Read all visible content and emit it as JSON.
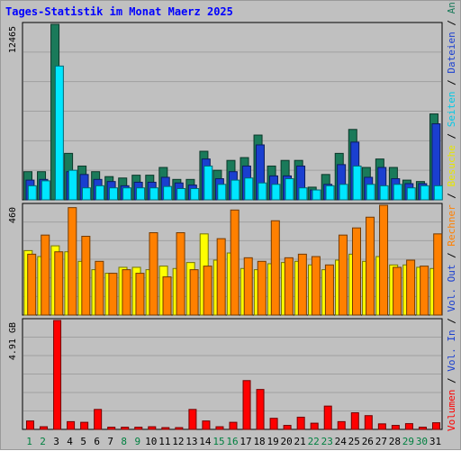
{
  "chart_data": {
    "type": "bar",
    "title": "Tages-Statistik im Monat Maerz 2025",
    "categories": [
      "1",
      "2",
      "3",
      "4",
      "5",
      "6",
      "7",
      "8",
      "9",
      "10",
      "11",
      "12",
      "13",
      "14",
      "15",
      "16",
      "17",
      "18",
      "19",
      "20",
      "21",
      "22",
      "23",
      "24",
      "25",
      "26",
      "27",
      "28",
      "29",
      "30",
      "31"
    ],
    "weekend_days": [
      "1",
      "2",
      "8",
      "9",
      "15",
      "16",
      "22",
      "23",
      "29",
      "30"
    ],
    "panels": [
      {
        "id": "requests",
        "ylim": [
          0,
          12465
        ],
        "max_label": "12465",
        "series": [
          {
            "name": "Anfragen",
            "color": "#1a7a5a",
            "values": [
              2000,
              2000,
              12465,
              3300,
              2400,
              2000,
              1650,
              1550,
              1750,
              1750,
              2300,
              1450,
              1450,
              3450,
              2100,
              2800,
              3000,
              4600,
              2400,
              2800,
              2800,
              900,
              1800,
              3300,
              5000,
              2300,
              2900,
              2300,
              1400,
              1300,
              6100
            ]
          },
          {
            "name": "Dateien",
            "color": "#1a3fd0",
            "values": [
              1400,
              1450,
              0,
              2000,
              1800,
              1450,
              1300,
              1000,
              1250,
              1250,
              1600,
              1200,
              1050,
              2900,
              1500,
              2000,
              2400,
              3900,
              1700,
              1700,
              2400,
              700,
              1100,
              2500,
              4100,
              1600,
              2300,
              1500,
              1150,
              1150,
              5400
            ]
          },
          {
            "name": "Seiten",
            "color": "#00e6ff",
            "values": [
              1000,
              1350,
              9500,
              2100,
              850,
              1000,
              850,
              850,
              850,
              850,
              950,
              800,
              800,
              2400,
              1100,
              1400,
              1550,
              1200,
              1100,
              1500,
              850,
              700,
              1000,
              1100,
              2400,
              1100,
              1000,
              1100,
              850,
              1000,
              1000
            ]
          }
        ]
      },
      {
        "id": "visits",
        "ylim": [
          0,
          460
        ],
        "max_label": "460",
        "series": [
          {
            "name": "Besuche",
            "color": "#ffff00",
            "values": [
              270,
              245,
              290,
              265,
              225,
              190,
              175,
              200,
              200,
              190,
              205,
              195,
              220,
              340,
              230,
              260,
              195,
              190,
              215,
              220,
              225,
              210,
              190,
              230,
              255,
              225,
              245,
              210,
              210,
              200,
              195
            ]
          },
          {
            "name": "Rechner",
            "color": "#ff8000",
            "values": [
              255,
              335,
              265,
              450,
              330,
              225,
              175,
              190,
              175,
              345,
              160,
              345,
              190,
              205,
              320,
              440,
              240,
              225,
              395,
              240,
              255,
              245,
              210,
              335,
              365,
              410,
              460,
              200,
              230,
              205,
              340
            ]
          }
        ]
      },
      {
        "id": "volume",
        "ylim": [
          0,
          4.91
        ],
        "max_label": "4.91 GB",
        "series": [
          {
            "name": "Volumen",
            "color": "#ff0000",
            "values": [
              0.38,
              0.12,
              4.91,
              0.35,
              0.32,
              0.9,
              0.1,
              0.1,
              0.1,
              0.12,
              0.08,
              0.08,
              0.9,
              0.38,
              0.12,
              0.32,
              2.2,
              1.8,
              0.5,
              0.18,
              0.55,
              0.28,
              1.05,
              0.35,
              0.75,
              0.62,
              0.25,
              0.18,
              0.26,
              0.1,
              0.3
            ]
          }
        ]
      }
    ],
    "legend_right": [
      {
        "text": "Anfragen",
        "color": "#1a7a5a"
      },
      {
        "text": "Dateien",
        "color": "#1a3fd0"
      },
      {
        "text": "Seiten",
        "color": "#00c8e6"
      },
      {
        "text": "Besuche",
        "color": "#e6e600"
      },
      {
        "text": "Rechner",
        "color": "#ff8000"
      },
      {
        "text": "Vol. Out",
        "color": "#1a3fd0"
      },
      {
        "text": "Vol. In",
        "color": "#1a3fd0"
      },
      {
        "text": "Volumen",
        "color": "#ff0000"
      }
    ],
    "legend_separator": "/",
    "grid": true
  }
}
